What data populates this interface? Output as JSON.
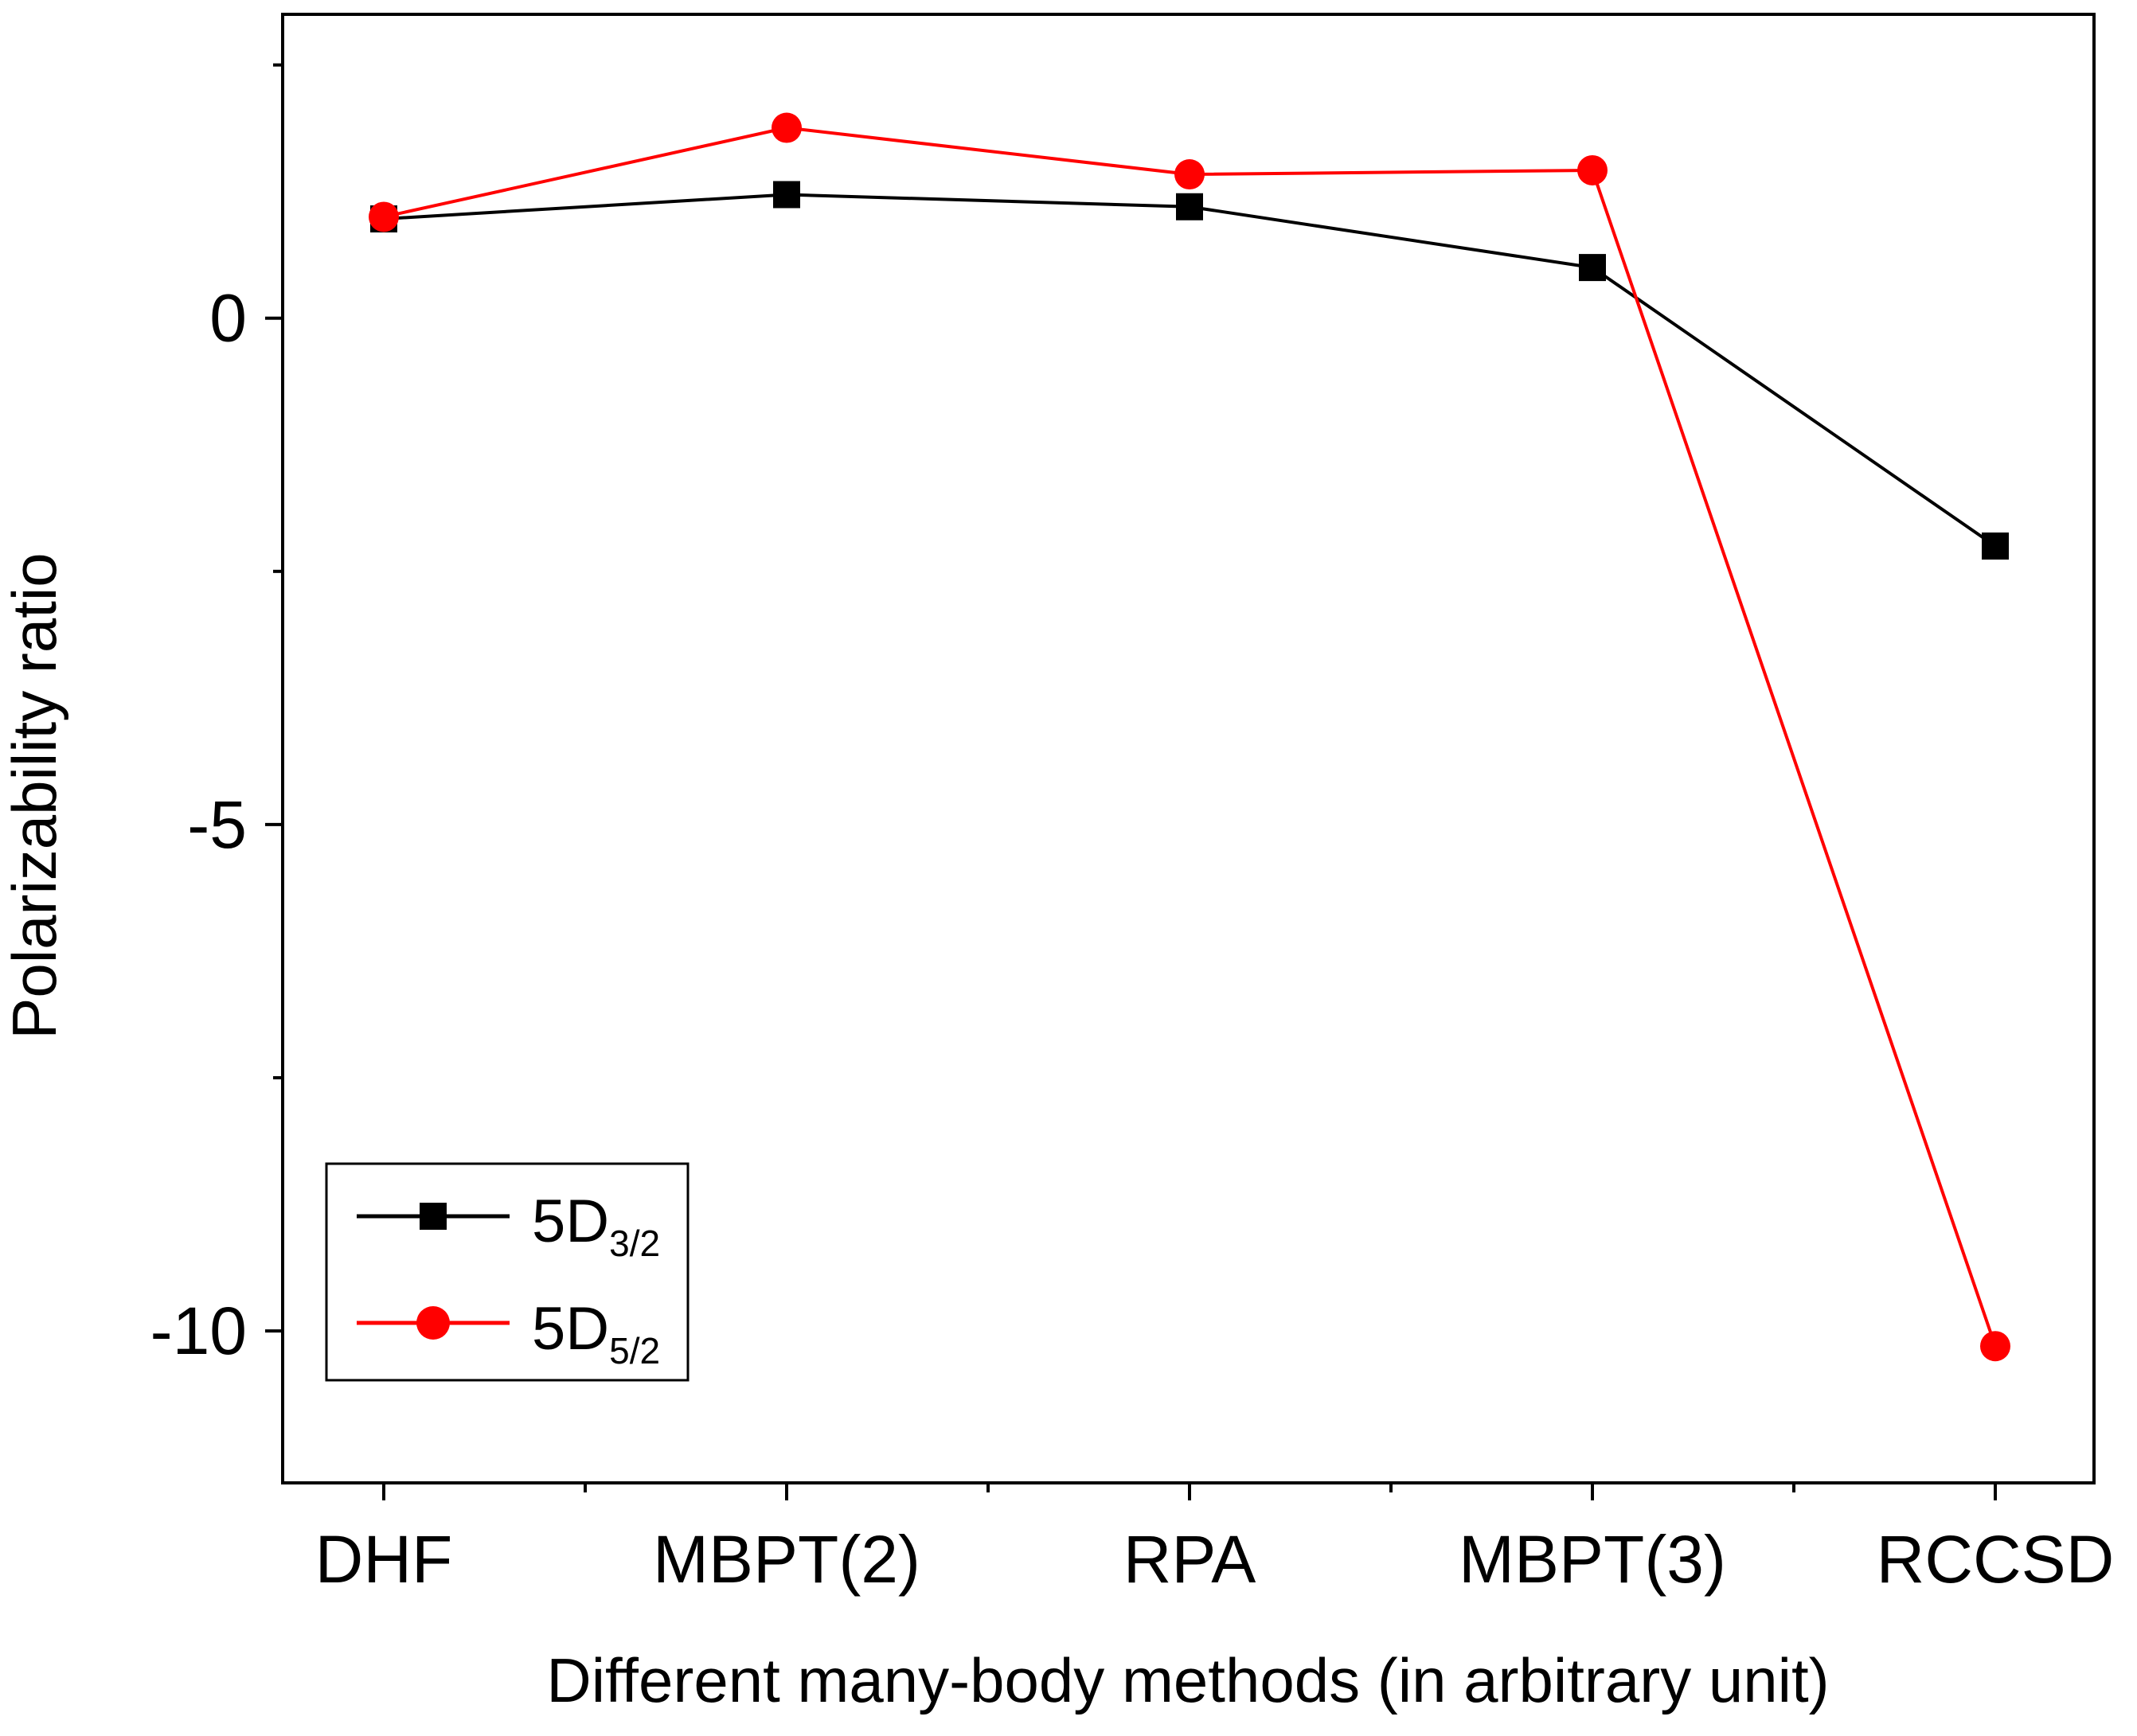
{
  "chart_data": {
    "type": "line",
    "title": "",
    "xlabel": "Different many-body methods (in arbitrary unit)",
    "ylabel": "Polarizability ratio",
    "categories": [
      "DHF",
      "MBPT(2)",
      "RPA",
      "MBPT(3)",
      "RCCSD"
    ],
    "ylim": [
      -11.5,
      3.0
    ],
    "yticks": [
      0,
      -5,
      -10
    ],
    "ytick_labels": [
      "0",
      "-5",
      "-10"
    ],
    "grid": false,
    "legend_position": "bottom-left",
    "series": [
      {
        "name": "5D",
        "subscript": "3/2",
        "color": "#000000",
        "marker": "square",
        "values": [
          0.98,
          1.22,
          1.1,
          0.5,
          -2.25
        ]
      },
      {
        "name": "5D",
        "subscript": "5/2",
        "color": "#ff0000",
        "marker": "circle",
        "values": [
          1.0,
          1.88,
          1.42,
          1.46,
          -10.15
        ]
      }
    ]
  }
}
